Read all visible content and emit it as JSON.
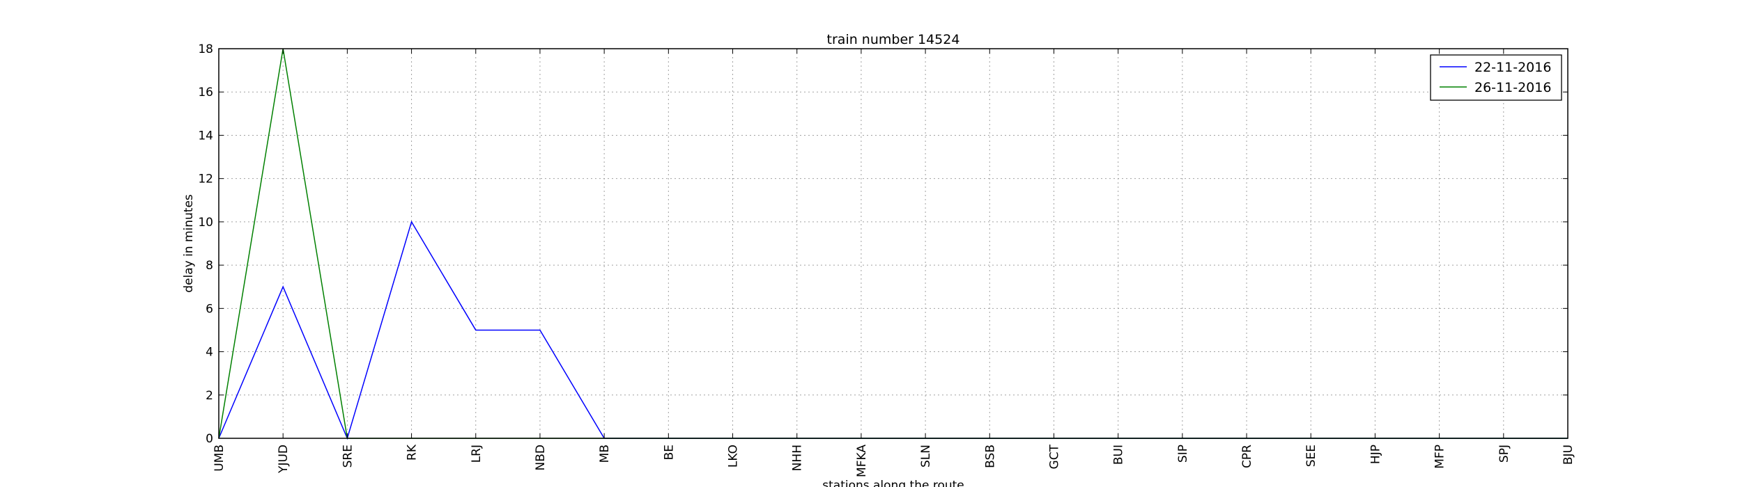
{
  "chart_data": {
    "type": "line",
    "title": "train number 14524",
    "xlabel": "stations along the route",
    "ylabel": "delay in minutes",
    "categories": [
      "UMB",
      "YJUD",
      "SRE",
      "RK",
      "LRJ",
      "NBD",
      "MB",
      "BE",
      "LKO",
      "NHH",
      "MFKA",
      "SLN",
      "BSB",
      "GCT",
      "BUI",
      "SIP",
      "CPR",
      "SEE",
      "HJP",
      "MFP",
      "SPJ",
      "BJU"
    ],
    "yticks": [
      0,
      2,
      4,
      6,
      8,
      10,
      12,
      14,
      16,
      18
    ],
    "ylim": [
      0,
      18
    ],
    "grid": true,
    "legend_position": "top-right",
    "series": [
      {
        "name": "22-11-2016",
        "color": "#0000ff",
        "values": [
          0,
          7,
          0,
          10,
          5,
          5,
          0,
          0,
          0,
          0,
          0,
          0,
          0,
          0,
          0,
          0,
          0,
          0,
          0,
          0,
          0,
          0
        ]
      },
      {
        "name": "26-11-2016",
        "color": "#008000",
        "values": [
          0,
          18,
          0,
          0,
          0,
          0,
          0,
          0,
          0,
          0,
          0,
          0,
          0,
          0,
          0,
          0,
          0,
          0,
          0,
          0,
          0,
          0
        ]
      }
    ]
  }
}
